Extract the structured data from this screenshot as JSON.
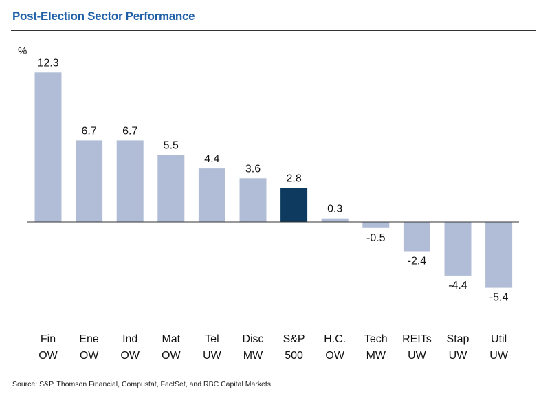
{
  "title": "Post-Election Sector Performance",
  "source": "Source: S&P, Thomson Financial, Compustat, FactSet, and RBC Capital Markets",
  "chart_data": {
    "type": "bar",
    "title": "Post-Election Sector Performance",
    "ylabel": "%",
    "xlabel": "",
    "ylim": [
      -7,
      13.5
    ],
    "grid": false,
    "legend": "none",
    "categories": [
      [
        "Fin",
        "OW"
      ],
      [
        "Ene",
        "OW"
      ],
      [
        "Ind",
        "OW"
      ],
      [
        "Mat",
        "OW"
      ],
      [
        "Tel",
        "UW"
      ],
      [
        "Disc",
        "MW"
      ],
      [
        "S&P",
        "500"
      ],
      [
        "H.C.",
        "OW"
      ],
      [
        "Tech",
        "MW"
      ],
      [
        "REITs",
        "UW"
      ],
      [
        "Stap",
        "UW"
      ],
      [
        "Util",
        "UW"
      ]
    ],
    "values": [
      12.3,
      6.7,
      6.7,
      5.5,
      4.4,
      3.6,
      2.8,
      0.3,
      -0.5,
      -2.4,
      -4.4,
      -5.4
    ],
    "data_labels": [
      "12.3",
      "6.7",
      "6.7",
      "5.5",
      "4.4",
      "3.6",
      "2.8",
      "0.3",
      "-0.5",
      "-2.4",
      "-4.4",
      "-5.4"
    ],
    "highlight_index": 6,
    "colors": {
      "bar": "#b1bdd6",
      "highlight": "#0d3a5e",
      "axis": "#333333"
    }
  }
}
